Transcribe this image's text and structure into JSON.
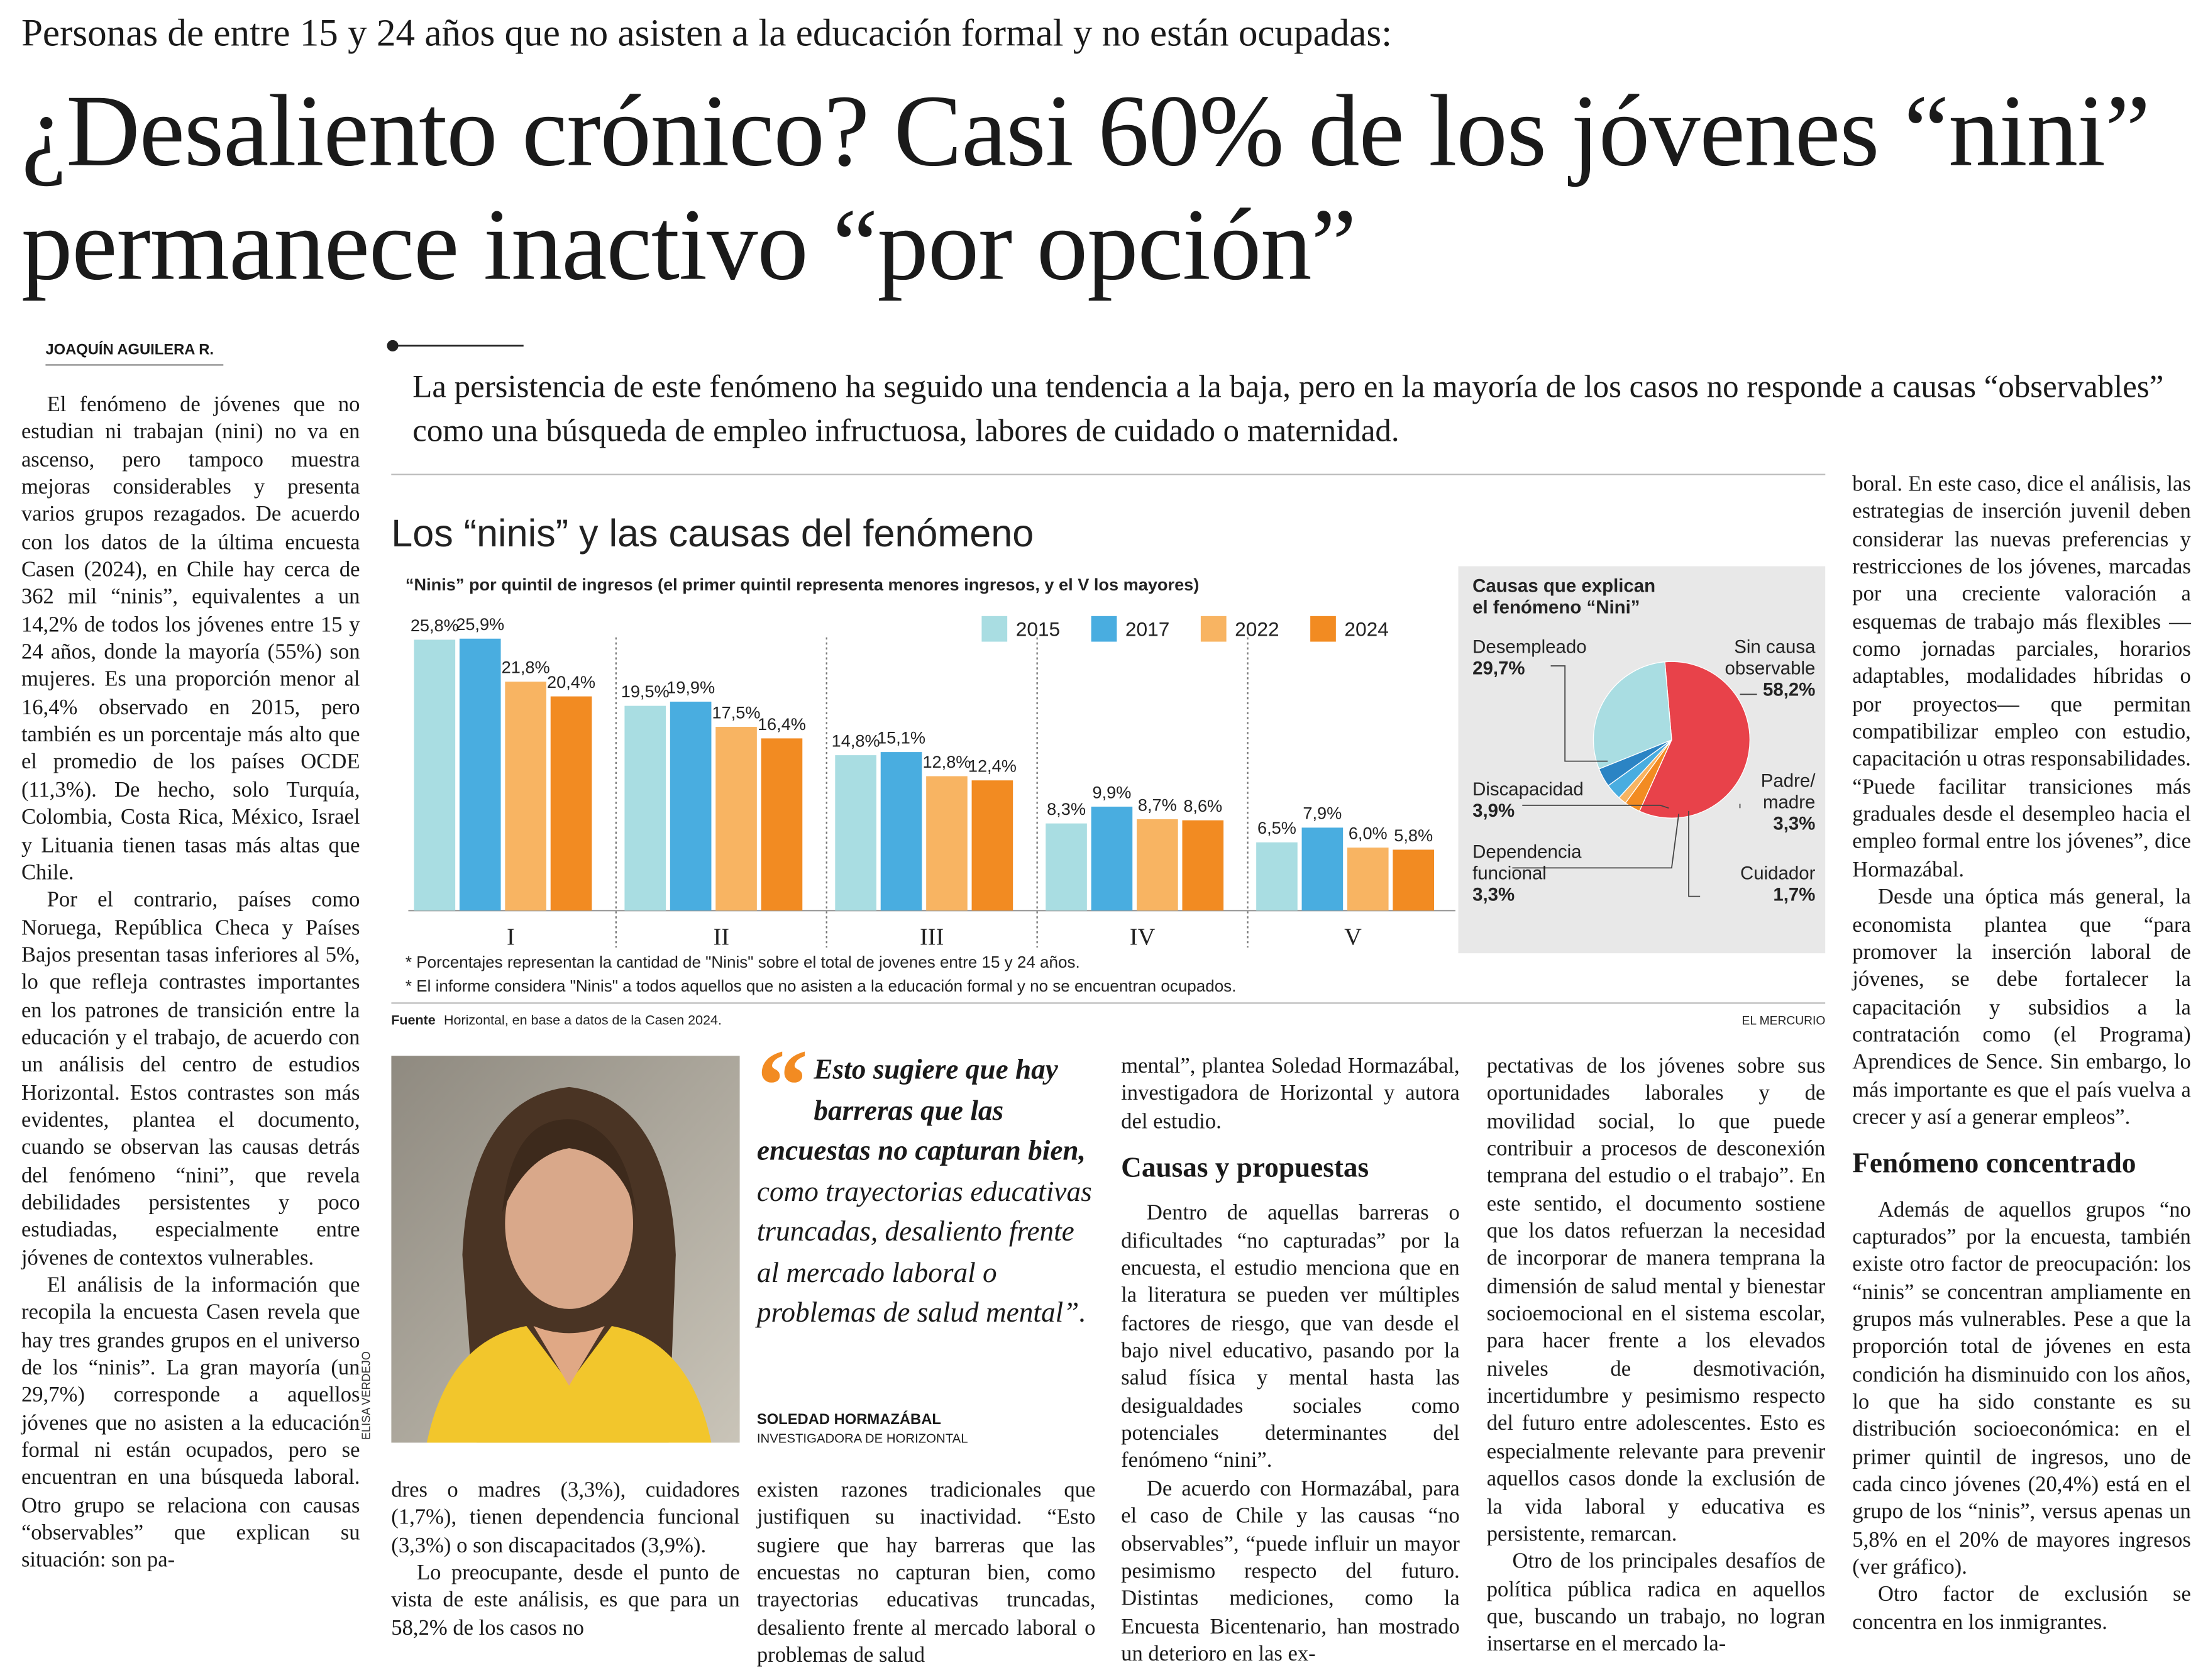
{
  "header": {
    "kicker": "Personas de entre 15 y 24 años que no asisten a la educación formal y no están ocupadas:",
    "title": "¿Desaliento crónico? Casi 60% de los jóvenes “nini” permanece inactivo “por opción”",
    "byline": "JOAQUÍN AGUILERA R.",
    "lead": "La persistencia de este fenómeno ha seguido una tendencia a la baja, pero en la mayoría de los casos no responde a causas “observables” como una búsqueda de empleo infructuosa, labores de cuidado o maternidad."
  },
  "chart_data": [
    {
      "type": "bar",
      "title": "Los “ninis” y las causas del fenómeno",
      "subtitle": "“Ninis” por quintil de ingresos (el primer quintil representa menores ingresos, y el V los mayores)",
      "categories": [
        "I",
        "II",
        "III",
        "IV",
        "V"
      ],
      "series": [
        {
          "name": "2015",
          "color": "#a9dde2",
          "values": [
            25.8,
            19.5,
            14.8,
            8.3,
            6.5
          ],
          "value_labels": [
            "25,8%",
            "19,5%",
            "14,8%",
            "8,3%",
            "6,5%"
          ]
        },
        {
          "name": "2017",
          "color": "#49ade0",
          "values": [
            25.9,
            19.9,
            15.1,
            9.9,
            7.9
          ],
          "value_labels": [
            "25,9%",
            "19,9%",
            "15,1%",
            "9,9%",
            "7,9%"
          ]
        },
        {
          "name": "2022",
          "color": "#f8b462",
          "values": [
            21.8,
            17.5,
            12.8,
            8.7,
            6.0
          ],
          "value_labels": [
            "21,8%",
            "17,5%",
            "12,8%",
            "8,7%",
            "6,0%"
          ]
        },
        {
          "name": "2024",
          "color": "#f28b22",
          "values": [
            20.4,
            16.4,
            12.4,
            8.6,
            5.8
          ],
          "value_labels": [
            "20,4%",
            "16,4%",
            "12,4%",
            "8,6%",
            "5,8%"
          ]
        }
      ],
      "ylim": [
        0,
        29
      ],
      "notes": [
        "* Porcentajes representan la cantidad de \"Ninis\" sobre el total de jovenes entre 15 y 24 años.",
        "* El informe considera \"Ninis\" a todos aquellos que no asisten a la educación formal y no se encuentran ocupados."
      ],
      "source_label": "Fuente",
      "source": "Horizontal, en base a datos de la Casen 2024.",
      "credit": "EL MERCURIO"
    },
    {
      "type": "pie",
      "title": "Causas que explican el fenómeno “Nini”",
      "categories": [
        "Sin causa observable",
        "Padre/ madre",
        "Cuidador",
        "Dependencia funcional",
        "Discapacidad",
        "Desempleado"
      ],
      "values": [
        58.2,
        3.3,
        1.7,
        3.3,
        3.9,
        29.7
      ],
      "value_labels": [
        "58,2%",
        "3,3%",
        "1,7%",
        "3,3%",
        "3,9%",
        "29,7%"
      ],
      "colors": [
        "#e8424a",
        "#f28b22",
        "#f8b462",
        "#49ade0",
        "#2b84c4",
        "#a9dde2"
      ]
    }
  ],
  "photo_credit": "ELISA VERDEJO",
  "quote": {
    "mark": "“",
    "lead": "Esto sugiere que hay barreras que las encuestas no capturan bien,",
    "rest": "como trayectorias educativas truncadas, desaliento frente al mercado laboral o problemas de salud mental”.",
    "author": "SOLEDAD HORMAZÁBAL",
    "role": "INVESTIGADORA DE HORIZONTAL"
  },
  "columns": [
    {
      "paragraphs": [
        "El fenómeno de jóvenes que no estudian ni trabajan (nini) no va en ascenso, pero tampoco muestra mejoras considerables y presenta varios grupos rezagados. De acuerdo con los datos de la última encuesta Casen (2024), en Chile hay cerca de 362 mil “ninis”, equivalentes a un 14,2% de todos los jóvenes entre 15 y 24 años, donde la mayoría (55%) son mujeres. Es una proporción menor al 16,4% observado en 2015, pero también es un porcentaje más alto que el promedio de los países OCDE (11,3%). De hecho, solo Turquía, Colombia, Costa Rica, México, Israel y Lituania tienen tasas más altas que Chile.",
        "Por el contrario, países como Noruega, República Checa y Países Bajos presentan tasas inferiores al 5%, lo que refleja contrastes importantes en los patrones de transición entre la educación y el trabajo, de acuerdo con un análisis del centro de estudios Horizontal. Estos contrastes son más evidentes, plantea el documento, cuando se observan las causas detrás del fenómeno “nini”, que revela debilidades persistentes y poco estudiadas, especialmente entre jóvenes de contextos vulnerables.",
        "El análisis de la información que recopila la encuesta Casen revela que hay tres grandes grupos en el universo de los “ninis”. La gran mayoría (un 29,7%) corresponde a aquellos jóvenes que no asisten a la educación formal ni están ocupados, pero se encuentran en una búsqueda laboral. Otro grupo se relaciona con causas “observables” que explican su situación: son pa-"
      ]
    },
    {
      "paragraphs": [
        "dres o madres (3,3%), cuidadores (1,7%), tienen dependencia funcional (3,3%) o son discapacitados (3,9%).",
        "Lo preocupante, desde el punto de vista de este análisis, es que para un 58,2% de los casos no"
      ]
    },
    {
      "paragraphs": [
        "existen razones tradicionales que justifiquen su inactividad. “Esto sugiere que hay barreras que las encuestas no capturan bien, como trayectorias educativas truncadas, desaliento frente al mercado laboral o problemas de salud"
      ]
    },
    {
      "paragraphs": [
        "mental”, plantea Soledad Hormazábal, investigadora de Horizontal y autora del estudio."
      ],
      "subhead": "Causas y propuestas",
      "after": [
        "Dentro de aquellas barreras o dificultades “no capturadas” por la encuesta, el estudio menciona que en la literatura se pueden ver múltiples factores de riesgo, que van desde el bajo nivel educativo, pasando por la salud física y mental hasta las desigualdades sociales como potenciales determinantes del fenómeno “nini”.",
        "De acuerdo con Hormazábal, para el caso de Chile y las causas “no observables”, “puede influir un mayor pesimismo respecto del futuro. Distintas mediciones, como la Encuesta Bicentenario, han mostrado un deterioro en las ex-"
      ]
    },
    {
      "paragraphs": [
        "pectativas de los jóvenes sobre sus oportunidades laborales y de movilidad social, lo que puede contribuir a procesos de desconexión temprana del estudio o el trabajo”. En este sentido, el documento sostiene que los datos refuerzan la necesidad de incorporar de manera temprana la dimensión de salud mental y bienestar socioemocional en el sistema escolar, para hacer frente a los elevados niveles de desmotivación, incertidumbre y pesimismo respecto del futuro entre adolescentes. Esto es especialmente relevante para prevenir aquellos casos donde la exclusión de la vida laboral y educativa es persistente, remarcan.",
        "Otro de los principales desafíos de política pública radica en aquellos que, buscando un trabajo, no logran insertarse en el mercado la-"
      ]
    },
    {
      "paragraphs": [
        "boral. En este caso, dice el análisis, las estrategias de inserción juvenil deben considerar las nuevas preferencias y restricciones de los jóvenes, marcadas por una creciente valoración a esquemas de trabajo más flexibles —como jornadas parciales, horarios adaptables, modalidades híbridas o por proyectos— que permitan compatibilizar empleo con estudio, capacitación u otras responsabilidades. “Puede facilitar transiciones más graduales desde el desempleo hacia el empleo formal entre los jóvenes”, dice Hormazábal.",
        "Desde una óptica más general, la economista plantea que “para promover la inserción laboral de jóvenes, se debe fortalecer la capacitación y subsidios a la contratación como (el Programa) Aprendices de Sence. Sin embargo, lo más importante es que el país vuelva a crecer y así a generar empleos”."
      ],
      "subhead": "Fenómeno concentrado",
      "after": [
        "Además de aquellos grupos “no capturados” por la encuesta, también existe otro factor de preocupación: los “ninis” se concentran ampliamente en grupos más vulnerables. Pese a que la proporción total de jóvenes en esta condición ha disminuido con los años, lo que ha sido constante es su distribución socioeconómica: en el primer quintil de ingresos, uno de cada cinco jóvenes (20,4%) está en el grupo de los “ninis”, versus apenas un 5,8% en el 20% de mayores ingresos (ver gráfico).",
        "Otro factor de exclusión se concentra en los inmigrantes."
      ]
    }
  ]
}
